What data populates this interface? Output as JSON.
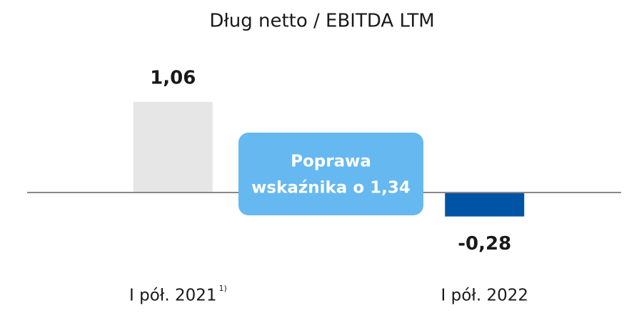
{
  "chart_data": {
    "type": "bar",
    "title": "Dług netto / EBITDA LTM",
    "categories": [
      "I pół. 2021",
      "I pół. 2022"
    ],
    "category_footnote": "1)",
    "values": [
      1.06,
      -0.28
    ],
    "value_labels": [
      "1,06",
      "-0,28"
    ],
    "colors": [
      "#e6e6e6",
      "#0054a6"
    ],
    "ylim": [
      -0.5,
      1.5
    ],
    "annotation": [
      "Poprawa",
      "wskaźnika o 1,34"
    ]
  }
}
